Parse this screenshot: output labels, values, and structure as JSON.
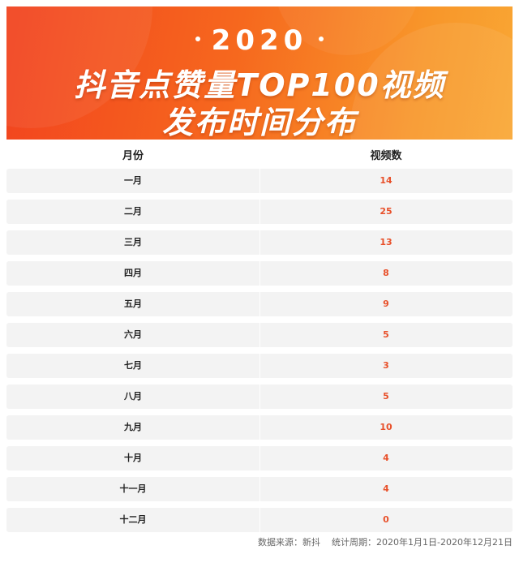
{
  "banner": {
    "year": "2020",
    "title_line1": "抖音点赞量TOP100视频",
    "title_line2": "发布时间分布",
    "colors": {
      "start": "#f2431f",
      "end": "#f9a734"
    }
  },
  "table": {
    "headers": {
      "month": "月份",
      "count": "视频数"
    },
    "accent_color": "#e8502a",
    "rows": [
      {
        "month": "一月",
        "count": "14"
      },
      {
        "month": "二月",
        "count": "25"
      },
      {
        "month": "三月",
        "count": "13"
      },
      {
        "month": "四月",
        "count": "8"
      },
      {
        "month": "五月",
        "count": "9"
      },
      {
        "month": "六月",
        "count": "5"
      },
      {
        "month": "七月",
        "count": "3"
      },
      {
        "month": "八月",
        "count": "5"
      },
      {
        "month": "九月",
        "count": "10"
      },
      {
        "month": "十月",
        "count": "4"
      },
      {
        "month": "十一月",
        "count": "4"
      },
      {
        "month": "十二月",
        "count": "0"
      }
    ]
  },
  "footer": {
    "source": "数据来源：新抖",
    "period": "统计周期：2020年1月1日-2020年12月21日"
  }
}
